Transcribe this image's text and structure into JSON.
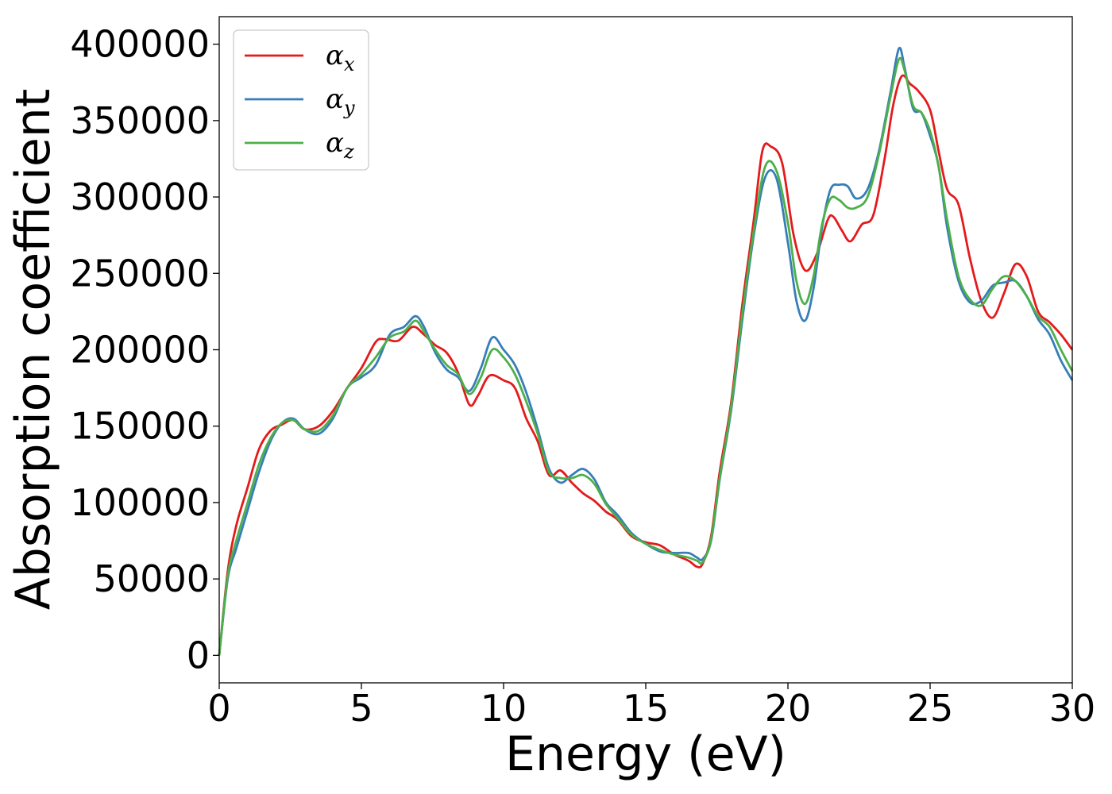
{
  "chart_data": {
    "type": "line",
    "title": "",
    "xlabel": "Energy (eV)",
    "ylabel": "Absorption coefficient",
    "xlim": [
      0,
      30
    ],
    "ylim": [
      -18000,
      418000
    ],
    "xticks": [
      0,
      5,
      10,
      15,
      20,
      25,
      30
    ],
    "yticks": [
      0,
      50000,
      100000,
      150000,
      200000,
      250000,
      300000,
      350000,
      400000
    ],
    "grid": false,
    "legend": "top-left",
    "series": [
      {
        "name": "α_x",
        "name_base": "α",
        "name_sub": "x",
        "color": "#e41a1c",
        "x": [
          0,
          0.3,
          0.6,
          1.0,
          1.4,
          1.8,
          2.2,
          2.6,
          3.0,
          3.5,
          4.0,
          4.5,
          5.0,
          5.5,
          5.8,
          6.3,
          6.8,
          7.2,
          7.6,
          8.0,
          8.4,
          8.8,
          9.1,
          9.5,
          10.0,
          10.4,
          10.8,
          11.2,
          11.6,
          12.0,
          12.4,
          12.8,
          13.2,
          13.6,
          14.0,
          14.5,
          15.0,
          15.5,
          16.0,
          16.5,
          16.8,
          17.0,
          17.3,
          17.6,
          18.0,
          18.4,
          18.8,
          19.1,
          19.4,
          19.8,
          20.2,
          20.6,
          21.0,
          21.4,
          21.6,
          21.9,
          22.2,
          22.6,
          23.0,
          23.4,
          23.7,
          24.0,
          24.3,
          24.6,
          25.0,
          25.3,
          25.6,
          26.0,
          26.4,
          26.8,
          27.2,
          27.6,
          28.0,
          28.4,
          28.8,
          29.2,
          29.6,
          30.0
        ],
        "y": [
          0,
          55000,
          85000,
          110000,
          135000,
          147000,
          151000,
          154000,
          148000,
          150000,
          160000,
          175000,
          188000,
          205000,
          207000,
          206000,
          215000,
          210000,
          203000,
          198000,
          185000,
          164000,
          170000,
          183000,
          180000,
          175000,
          155000,
          140000,
          118000,
          121000,
          113000,
          106000,
          101000,
          94000,
          89000,
          78000,
          74000,
          72000,
          66000,
          62000,
          58000,
          60000,
          78000,
          120000,
          165000,
          230000,
          285000,
          330000,
          333000,
          322000,
          275000,
          252000,
          262000,
          285000,
          287000,
          278000,
          271000,
          282000,
          288000,
          325000,
          360000,
          379000,
          374000,
          369000,
          357000,
          330000,
          305000,
          295000,
          260000,
          232000,
          221000,
          237000,
          256000,
          248000,
          225000,
          218000,
          210000,
          200000
        ]
      },
      {
        "name": "α_y",
        "name_base": "α",
        "name_sub": "y",
        "color": "#377eb8",
        "x": [
          0,
          0.3,
          0.6,
          1.0,
          1.4,
          1.8,
          2.2,
          2.6,
          3.0,
          3.5,
          4.0,
          4.5,
          5.0,
          5.5,
          6.0,
          6.5,
          6.9,
          7.2,
          7.6,
          8.0,
          8.4,
          8.8,
          9.2,
          9.6,
          10.0,
          10.4,
          10.8,
          11.2,
          11.6,
          12.0,
          12.4,
          12.8,
          13.2,
          13.6,
          14.0,
          14.5,
          15.0,
          15.5,
          16.0,
          16.5,
          16.8,
          17.0,
          17.3,
          17.6,
          18.0,
          18.4,
          18.8,
          19.2,
          19.6,
          20.0,
          20.3,
          20.6,
          20.9,
          21.2,
          21.5,
          21.8,
          22.1,
          22.4,
          22.8,
          23.2,
          23.6,
          23.9,
          24.1,
          24.4,
          24.7,
          25.0,
          25.3,
          25.6,
          26.0,
          26.4,
          26.8,
          27.2,
          27.6,
          28.0,
          28.4,
          28.8,
          29.2,
          29.6,
          30.0
        ],
        "y": [
          0,
          50000,
          70000,
          95000,
          120000,
          140000,
          152000,
          155000,
          148000,
          145000,
          155000,
          175000,
          182000,
          190000,
          210000,
          215000,
          222000,
          215000,
          198000,
          187000,
          182000,
          173000,
          188000,
          208000,
          200000,
          190000,
          172000,
          148000,
          122000,
          113000,
          118000,
          122000,
          115000,
          100000,
          92000,
          80000,
          73000,
          68000,
          67000,
          67000,
          64000,
          63000,
          75000,
          115000,
          160000,
          220000,
          275000,
          313000,
          312000,
          270000,
          232000,
          219000,
          240000,
          280000,
          305000,
          308000,
          307000,
          299000,
          305000,
          330000,
          368000,
          397000,
          385000,
          358000,
          355000,
          340000,
          320000,
          280000,
          245000,
          231000,
          232000,
          242000,
          244000,
          245000,
          235000,
          220000,
          210000,
          193000,
          180000
        ]
      },
      {
        "name": "α_z",
        "name_base": "α",
        "name_sub": "z",
        "color": "#4daf4a",
        "x": [
          0,
          0.3,
          0.6,
          1.0,
          1.4,
          1.8,
          2.2,
          2.6,
          3.0,
          3.5,
          4.0,
          4.5,
          5.0,
          5.5,
          6.0,
          6.5,
          6.9,
          7.2,
          7.6,
          8.0,
          8.4,
          8.8,
          9.2,
          9.6,
          10.0,
          10.4,
          10.8,
          11.2,
          11.6,
          12.0,
          12.4,
          12.8,
          13.2,
          13.6,
          14.0,
          14.5,
          15.0,
          15.5,
          16.0,
          16.5,
          16.8,
          17.0,
          17.3,
          17.6,
          18.0,
          18.4,
          18.8,
          19.2,
          19.6,
          20.0,
          20.3,
          20.6,
          20.9,
          21.2,
          21.5,
          21.8,
          22.1,
          22.4,
          22.8,
          23.2,
          23.6,
          23.9,
          24.1,
          24.4,
          24.7,
          25.0,
          25.3,
          25.6,
          26.0,
          26.4,
          26.8,
          27.2,
          27.6,
          28.0,
          28.4,
          28.8,
          29.2,
          29.6,
          30.0
        ],
        "y": [
          0,
          52000,
          75000,
          100000,
          125000,
          142000,
          152000,
          154000,
          148000,
          147000,
          157000,
          175000,
          184000,
          195000,
          208000,
          212000,
          219000,
          212000,
          200000,
          190000,
          184000,
          171000,
          182000,
          200000,
          195000,
          184000,
          166000,
          145000,
          120000,
          116000,
          116000,
          118000,
          112000,
          99000,
          90000,
          79000,
          73000,
          69000,
          66000,
          64000,
          62000,
          61000,
          76000,
          116000,
          162000,
          224000,
          278000,
          320000,
          317000,
          283000,
          245000,
          230000,
          248000,
          282000,
          299000,
          298000,
          293000,
          293000,
          300000,
          328000,
          365000,
          390000,
          383000,
          360000,
          355000,
          343000,
          320000,
          285000,
          248000,
          233000,
          229000,
          240000,
          248000,
          245000,
          235000,
          222000,
          215000,
          200000,
          186000
        ]
      }
    ]
  }
}
